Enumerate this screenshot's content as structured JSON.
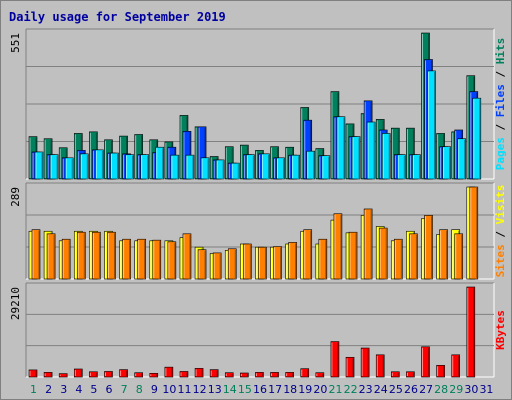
{
  "chart_data": [
    {
      "type": "bar",
      "title": "Daily usage for September 2019",
      "ymax_label": "551",
      "ymax": 551,
      "grid": true,
      "categories": [
        "1",
        "2",
        "3",
        "4",
        "5",
        "6",
        "7",
        "8",
        "9",
        "10",
        "11",
        "12",
        "13",
        "14",
        "15",
        "16",
        "17",
        "18",
        "19",
        "20",
        "21",
        "22",
        "23",
        "24",
        "25",
        "26",
        "27",
        "28",
        "29",
        "30",
        "31"
      ],
      "weekend_categories": [
        "1",
        "7",
        "8",
        "14",
        "15",
        "21",
        "22",
        "28",
        "29"
      ],
      "series": [
        {
          "name": "Hits",
          "color": "#00805c",
          "values": [
            160,
            152,
            118,
            172,
            178,
            148,
            162,
            168,
            148,
            140,
            240,
            197,
            85,
            122,
            128,
            108,
            122,
            120,
            270,
            115,
            330,
            208,
            247,
            225,
            192,
            192,
            551,
            172,
            178,
            390,
            0
          ]
        },
        {
          "name": "Files",
          "color": "#0040ff",
          "values": [
            102,
            92,
            80,
            108,
            110,
            98,
            95,
            92,
            100,
            120,
            180,
            197,
            72,
            60,
            92,
            95,
            80,
            90,
            222,
            88,
            235,
            160,
            295,
            185,
            92,
            92,
            451,
            122,
            185,
            330,
            0
          ]
        },
        {
          "name": "Pages",
          "color": "#00e0ff",
          "values": [
            102,
            92,
            80,
            95,
            110,
            98,
            92,
            92,
            120,
            90,
            90,
            80,
            72,
            60,
            92,
            95,
            80,
            90,
            105,
            88,
            235,
            160,
            215,
            172,
            92,
            92,
            408,
            122,
            152,
            305,
            0
          ]
        }
      ]
    },
    {
      "type": "bar",
      "ymax_label": "289",
      "ymax": 289,
      "grid": true,
      "series": [
        {
          "name": "Visits",
          "color": "#ffff00",
          "values": [
            150,
            150,
            120,
            150,
            150,
            150,
            120,
            120,
            120,
            120,
            130,
            100,
            80,
            90,
            110,
            100,
            100,
            110,
            150,
            110,
            185,
            145,
            200,
            165,
            120,
            150,
            190,
            140,
            155,
            289,
            0
          ]
        },
        {
          "name": "Sites",
          "color": "#ff8000",
          "values": [
            155,
            142,
            125,
            147,
            147,
            147,
            125,
            125,
            122,
            117,
            142,
            92,
            82,
            95,
            110,
            100,
            102,
            115,
            155,
            125,
            205,
            147,
            220,
            160,
            125,
            142,
            200,
            155,
            142,
            289,
            0
          ]
        }
      ]
    },
    {
      "type": "bar",
      "ymax_label": "29210",
      "ymax": 29210,
      "grid": true,
      "series": [
        {
          "name": "KBytes",
          "color": "#ff0000",
          "values": [
            2300,
            1500,
            1100,
            2600,
            1700,
            1800,
            2400,
            1400,
            1200,
            3200,
            1800,
            2800,
            2400,
            1400,
            1300,
            1500,
            1500,
            1500,
            2700,
            1400,
            11500,
            6400,
            9400,
            7200,
            1700,
            1700,
            9800,
            3800,
            7200,
            29210,
            0
          ]
        }
      ]
    }
  ],
  "legend": {
    "top": [
      "Hits",
      "Files",
      "Pages"
    ],
    "middle": [
      "Visits",
      "Sites"
    ],
    "bottom": [
      "KBytes"
    ],
    "separator": " / "
  },
  "colors": {
    "weekday_label": "#00008b",
    "weekend_label": "#00805c",
    "grid": "#808080",
    "panel_bg": "#c0c0c0"
  }
}
